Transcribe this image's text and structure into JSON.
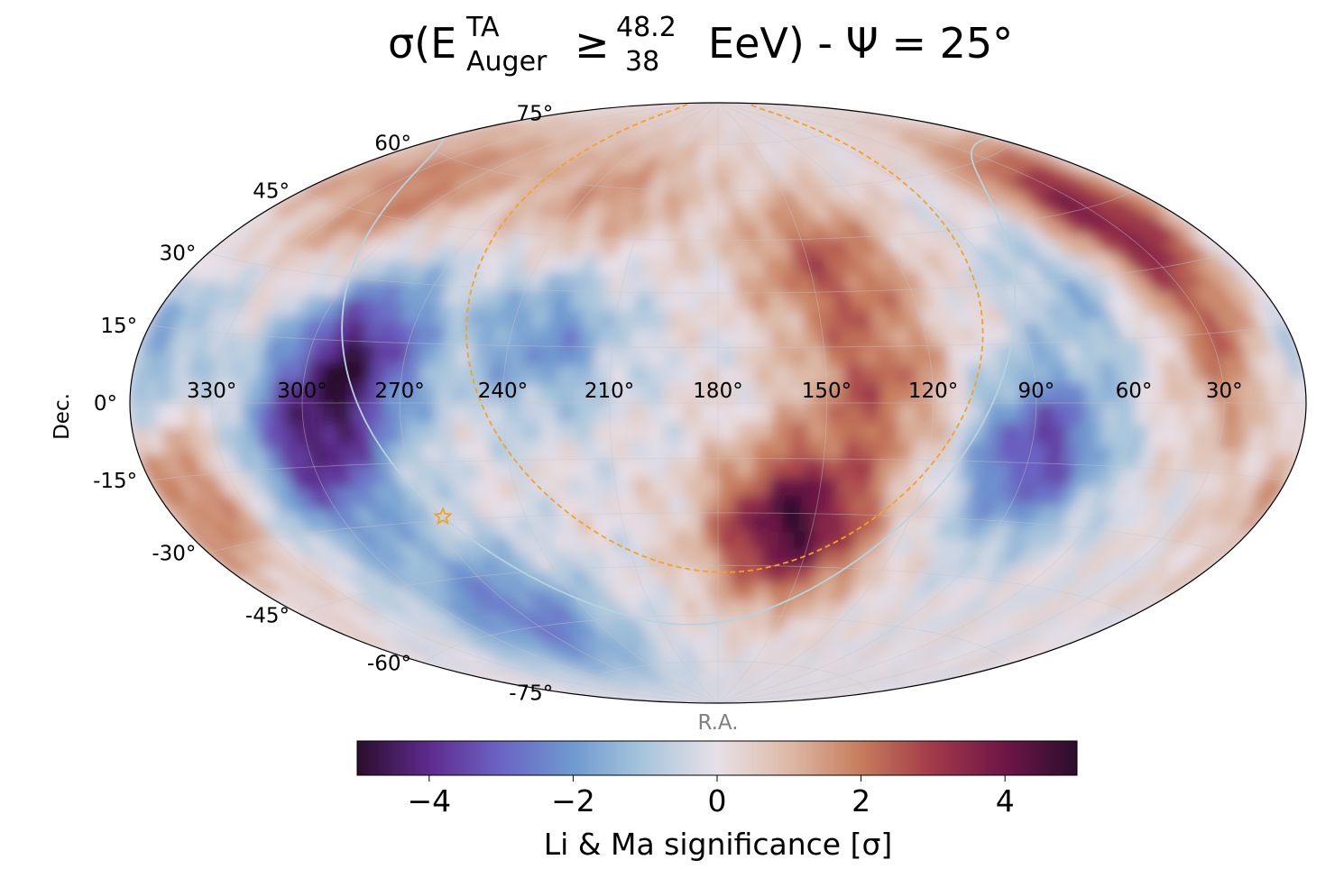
{
  "chart_data": {
    "type": "heatmap",
    "projection": "hammer",
    "title": {
      "prefix": "σ(E",
      "superscript": "TA",
      "subscript": "Auger",
      "geq": "≥",
      "frac_top": "48.2",
      "frac_bottom": "38",
      "suffix": "EeV) - Ψ = 25°"
    },
    "xlabel": "R.A.",
    "ylabel": "Dec.",
    "ra_ticks": [
      "330°",
      "300°",
      "270°",
      "240°",
      "210°",
      "180°",
      "150°",
      "120°",
      "90°",
      "60°",
      "30°"
    ],
    "ra_tick_values": [
      330,
      300,
      270,
      240,
      210,
      180,
      150,
      120,
      90,
      60,
      30
    ],
    "dec_ticks": [
      "75°",
      "60°",
      "45°",
      "30°",
      "15°",
      "0°",
      "-15°",
      "-30°",
      "-45°",
      "-60°",
      "-75°"
    ],
    "dec_tick_values": [
      75,
      60,
      45,
      30,
      15,
      0,
      -15,
      -30,
      -45,
      -60,
      -75
    ],
    "colorbar": {
      "label": "Li & Ma significance [σ]",
      "range": [
        -5,
        5
      ],
      "ticks": [
        "−4",
        "−2",
        "0",
        "2",
        "4"
      ],
      "tick_values": [
        -4,
        -2,
        0,
        2,
        4
      ],
      "colormap": [
        "#2b0e2d",
        "#5e2b8e",
        "#6b64c4",
        "#6f9ad0",
        "#a9c6dc",
        "#e8e0e8",
        "#ddb9a6",
        "#c67c5c",
        "#a2394a",
        "#6e1646",
        "#2b0e2d"
      ]
    },
    "hotspots": [
      {
        "ra": 157,
        "dec": -33,
        "sigma": 4.7
      },
      {
        "ra": 35,
        "dec": 43,
        "sigma": 4.2
      },
      {
        "ra": 145,
        "dec": 38,
        "sigma": 2.4
      },
      {
        "ra": 315,
        "dec": 52,
        "sigma": 2.0
      },
      {
        "ra": 350,
        "dec": -15,
        "sigma": 2.8
      },
      {
        "ra": 25,
        "dec": 10,
        "sigma": 2.0
      },
      {
        "ra": 135,
        "dec": 3,
        "sigma": 2.2
      },
      {
        "ra": 230,
        "dec": 57,
        "sigma": 1.6
      },
      {
        "ra": 285,
        "dec": 12,
        "sigma": -4.0
      },
      {
        "ra": 300,
        "dec": -12,
        "sigma": -3.6
      },
      {
        "ra": 230,
        "dec": 18,
        "sigma": -2.2
      },
      {
        "ra": 88,
        "dec": -12,
        "sigma": -3.6
      },
      {
        "ra": 270,
        "dec": -57,
        "sigma": -2.6
      },
      {
        "ra": 60,
        "dec": 32,
        "sigma": -2.0
      },
      {
        "ra": 355,
        "dec": 5,
        "sigma": -2.6
      }
    ],
    "overlays": {
      "field_of_view": {
        "color": "#f6a21e",
        "style": "dashed"
      },
      "galactic_plane": {
        "color": "#b7d3e0",
        "style": "solid"
      },
      "marker": {
        "shape": "star",
        "color": "#f6a21e",
        "ra": 266.4,
        "dec": -29.0
      }
    },
    "grid": true
  }
}
